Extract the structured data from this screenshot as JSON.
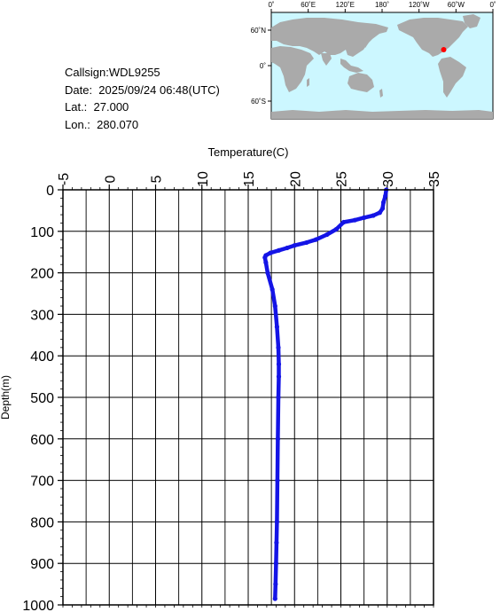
{
  "station": {
    "callsign": "Callsign:WDL9255",
    "date": "Date:  2025/09/24 06:48(UTC)",
    "lat": "Lat.:  27.000",
    "lon": "Lon.:  280.070"
  },
  "map": {
    "lon_labels": [
      "0˚",
      "60˚E",
      "120˚E",
      "180˚",
      "120˚W",
      "60˚W",
      "0˚"
    ],
    "lat_labels": [
      "60˚N",
      "0˚",
      "60˚S"
    ],
    "marker": {
      "lat": 27.0,
      "lon": 280.07,
      "color": "#ff0000"
    },
    "ocean_color": "#ccf7ff",
    "land_color": "#aaaaaa"
  },
  "chart_data": {
    "type": "line",
    "xlabel": "Temperature(C)",
    "ylabel": "Depth(m)",
    "x_axis_position": "top",
    "y_inverted": true,
    "xlim": [
      -5,
      35
    ],
    "ylim": [
      0,
      1000
    ],
    "xticks": [
      "-5",
      "0",
      "5",
      "10",
      "15",
      "20",
      "25",
      "30",
      "35"
    ],
    "yticks": [
      "0",
      "100",
      "200",
      "300",
      "400",
      "500",
      "600",
      "700",
      "800",
      "900",
      "1000"
    ],
    "grid": true,
    "line_color": "#1414e6",
    "series": [
      {
        "x": [
          29.9,
          29.8,
          29.6,
          29.5,
          29.2,
          28.5,
          27.5,
          26.5,
          25.3,
          24.5,
          23.5,
          22.3,
          21.3,
          20.0,
          19.2,
          18.3,
          17.4,
          16.9,
          16.8,
          16.9,
          17.1,
          17.6,
          17.9,
          18.1,
          18.25,
          18.3,
          18.3,
          18.25,
          18.2,
          18.15,
          18.1,
          18.05,
          18.0,
          17.95,
          17.9
        ],
        "y": [
          0,
          15,
          30,
          45,
          55,
          62,
          67,
          73,
          78,
          95,
          108,
          120,
          127,
          134,
          140,
          146,
          152,
          158,
          163,
          175,
          200,
          240,
          280,
          330,
          380,
          420,
          450,
          500,
          600,
          700,
          800,
          850,
          900,
          950,
          985
        ]
      }
    ]
  }
}
